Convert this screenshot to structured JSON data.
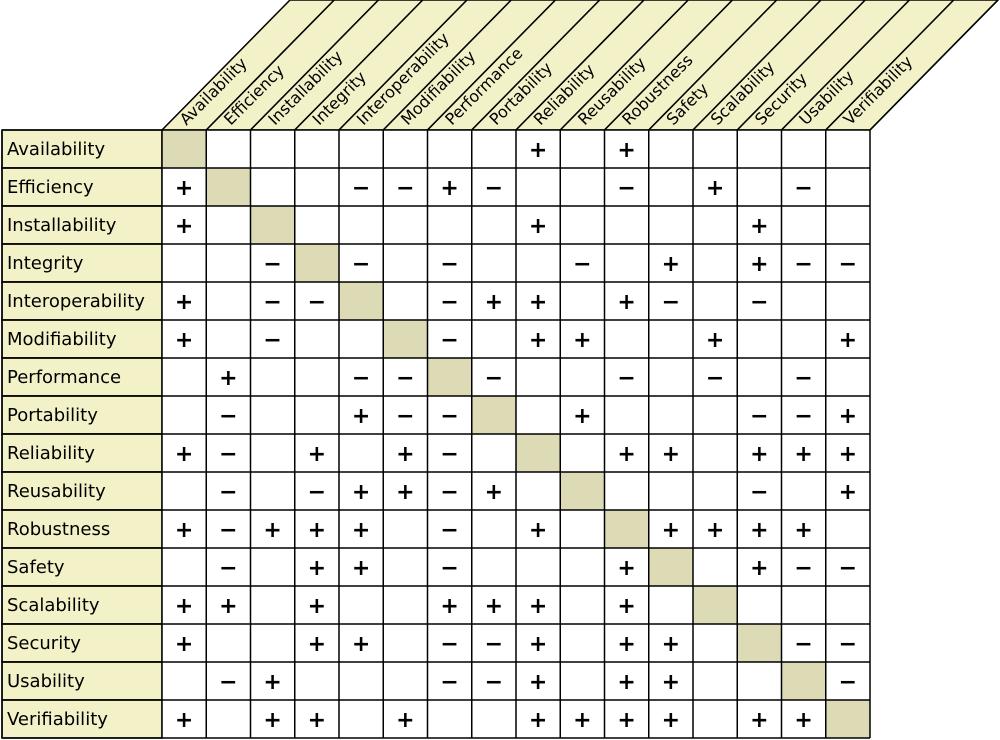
{
  "matrix": {
    "attributes": [
      "Availability",
      "Efficiency",
      "Installability",
      "Integrity",
      "Interoperability",
      "Modifiability",
      "Performance",
      "Portability",
      "Reliability",
      "Reusability",
      "Robustness",
      "Safety",
      "Scalability",
      "Security",
      "Usability",
      "Verifiability"
    ],
    "cells": [
      [
        "",
        "",
        "",
        "",
        "",
        "",
        "",
        "",
        "+",
        "",
        "+",
        "",
        "",
        "",
        "",
        ""
      ],
      [
        "+",
        "",
        "",
        "",
        "−",
        "−",
        "+",
        "−",
        "",
        "",
        "−",
        "",
        "+",
        "",
        "−",
        ""
      ],
      [
        "+",
        "",
        "",
        "",
        "",
        "",
        "",
        "",
        "+",
        "",
        "",
        "",
        "",
        "+",
        "",
        ""
      ],
      [
        "",
        "",
        "−",
        "",
        "−",
        "",
        "−",
        "",
        "",
        "−",
        "",
        "+",
        "",
        "+",
        "−",
        "−"
      ],
      [
        "+",
        "",
        "−",
        "−",
        "",
        "",
        "−",
        "+",
        "+",
        "",
        "+",
        "−",
        "",
        "−",
        "",
        ""
      ],
      [
        "+",
        "",
        "−",
        "",
        "",
        "",
        "−",
        "",
        "+",
        "+",
        "",
        "",
        "+",
        "",
        "",
        "+"
      ],
      [
        "",
        "+",
        "",
        "",
        "−",
        "−",
        "",
        "−",
        "",
        "",
        "−",
        "",
        "−",
        "",
        "−",
        ""
      ],
      [
        "",
        "−",
        "",
        "",
        "+",
        "−",
        "−",
        "",
        "",
        "+",
        "",
        "",
        "",
        "−",
        "−",
        "+"
      ],
      [
        "+",
        "−",
        "",
        "+",
        "",
        "+",
        "−",
        "",
        "",
        "",
        "+",
        "+",
        "",
        "+",
        "+",
        "+"
      ],
      [
        "",
        "−",
        "",
        "−",
        "+",
        "+",
        "−",
        "+",
        "",
        "",
        "",
        "",
        "",
        "−",
        "",
        "+"
      ],
      [
        "+",
        "−",
        "+",
        "+",
        "+",
        "",
        "−",
        "",
        "+",
        "",
        "",
        "+",
        "+",
        "+",
        "+",
        ""
      ],
      [
        "",
        "−",
        "",
        "+",
        "+",
        "",
        "−",
        "",
        "",
        "",
        "+",
        "",
        "",
        "+",
        "−",
        "−"
      ],
      [
        "+",
        "+",
        "",
        "+",
        "",
        "",
        "+",
        "+",
        "+",
        "",
        "+",
        "",
        "",
        "",
        "",
        ""
      ],
      [
        "+",
        "",
        "",
        "+",
        "+",
        "",
        "−",
        "−",
        "+",
        "",
        "+",
        "+",
        "",
        "",
        "−",
        "−"
      ],
      [
        "",
        "−",
        "+",
        "",
        "",
        "",
        "−",
        "−",
        "+",
        "",
        "+",
        "+",
        "",
        "",
        "",
        "−"
      ],
      [
        "+",
        "",
        "+",
        "+",
        "",
        "+",
        "",
        "",
        "+",
        "+",
        "+",
        "+",
        "",
        "+",
        "+",
        ""
      ]
    ]
  },
  "colors": {
    "label_fill": "#f2f1c8",
    "diagonal_fill": "#dcdbb6",
    "line": "#000000",
    "background": "#ffffff"
  }
}
